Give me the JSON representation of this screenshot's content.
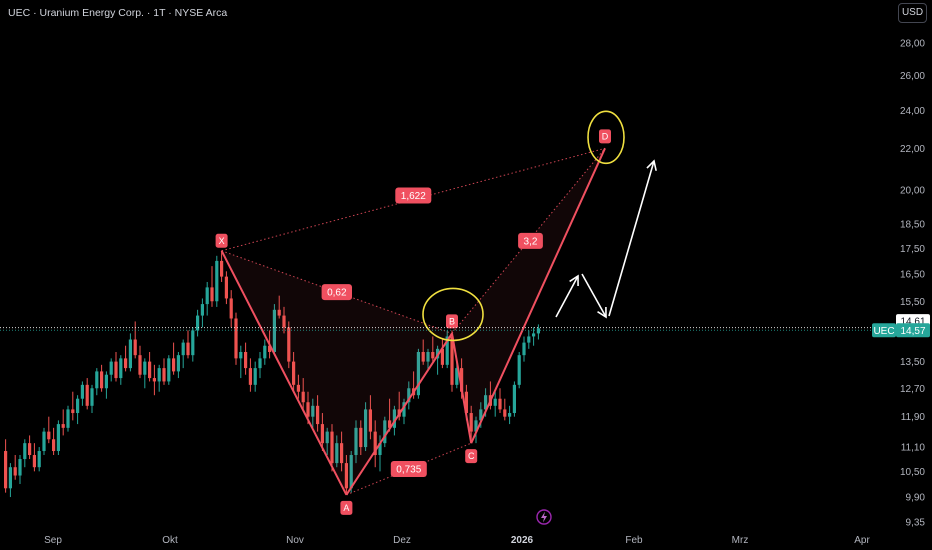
{
  "header": {
    "title": "UEC · Uranium Energy Corp. · 1T · NYSE Arca",
    "currency": "USD"
  },
  "chart_data": {
    "type": "candlestick",
    "symbol": "UEC",
    "price_axis": {
      "ticks": [
        "28,00",
        "26,00",
        "24,00",
        "22,00",
        "20,00",
        "18,50",
        "17,50",
        "16,50",
        "15,50",
        "13,50",
        "12,70",
        "11,90",
        "11,10",
        "10,50",
        "9,90",
        "9,35"
      ],
      "scale": "log"
    },
    "time_axis": {
      "ticks": [
        "Sep",
        "Okt",
        "Nov",
        "Dez",
        "2026",
        "Feb",
        "Mrz",
        "Apr"
      ],
      "bold": [
        "2026"
      ]
    },
    "last_price": "14,57",
    "crosshair_price": "14,61",
    "symbol_label": "UEC",
    "colors": {
      "up": "#26a69a",
      "down": "#ef5350",
      "pattern": "#f05060",
      "highlight": "#f0e040"
    },
    "pattern": {
      "points": [
        {
          "label": "X",
          "price": 17.4
        },
        {
          "label": "A",
          "price": 9.95
        },
        {
          "label": "B",
          "price": 14.4
        },
        {
          "label": "C",
          "price": 11.2
        },
        {
          "label": "D",
          "price": 22.0
        }
      ],
      "ratios": [
        "1,622",
        "0,62",
        "3,2",
        "0,735"
      ]
    },
    "candles": [
      [
        11.0,
        11.3,
        10.0,
        10.1
      ],
      [
        10.1,
        10.7,
        9.9,
        10.6
      ],
      [
        10.6,
        10.9,
        10.3,
        10.4
      ],
      [
        10.4,
        10.9,
        10.2,
        10.8
      ],
      [
        10.8,
        11.3,
        10.6,
        11.2
      ],
      [
        11.2,
        11.4,
        10.8,
        10.9
      ],
      [
        10.9,
        11.2,
        10.5,
        10.6
      ],
      [
        10.6,
        11.1,
        10.5,
        11.0
      ],
      [
        11.0,
        11.6,
        10.9,
        11.5
      ],
      [
        11.5,
        11.9,
        11.2,
        11.3
      ],
      [
        11.3,
        11.6,
        10.9,
        11.0
      ],
      [
        11.0,
        11.8,
        10.9,
        11.7
      ],
      [
        11.7,
        12.1,
        11.4,
        11.6
      ],
      [
        11.6,
        12.2,
        11.5,
        12.1
      ],
      [
        12.1,
        12.6,
        11.8,
        12.0
      ],
      [
        12.0,
        12.5,
        11.7,
        12.4
      ],
      [
        12.4,
        12.9,
        12.2,
        12.8
      ],
      [
        12.8,
        13.0,
        12.1,
        12.2
      ],
      [
        12.2,
        12.8,
        12.0,
        12.7
      ],
      [
        12.7,
        13.3,
        12.5,
        13.2
      ],
      [
        13.2,
        13.4,
        12.6,
        12.7
      ],
      [
        12.7,
        13.2,
        12.4,
        13.1
      ],
      [
        13.1,
        13.6,
        12.9,
        13.5
      ],
      [
        13.5,
        13.8,
        12.9,
        13.0
      ],
      [
        13.0,
        13.7,
        12.8,
        13.6
      ],
      [
        13.6,
        14.0,
        13.2,
        13.3
      ],
      [
        13.3,
        14.4,
        13.2,
        14.2
      ],
      [
        14.2,
        14.8,
        13.6,
        13.7
      ],
      [
        13.7,
        14.0,
        13.0,
        13.1
      ],
      [
        13.1,
        13.6,
        12.7,
        13.5
      ],
      [
        13.5,
        13.8,
        12.9,
        13.0
      ],
      [
        13.0,
        13.4,
        12.5,
        12.9
      ],
      [
        12.9,
        13.4,
        12.6,
        13.3
      ],
      [
        13.3,
        13.6,
        12.8,
        12.9
      ],
      [
        12.9,
        13.7,
        12.8,
        13.6
      ],
      [
        13.6,
        14.1,
        13.1,
        13.2
      ],
      [
        13.2,
        13.8,
        13.0,
        13.7
      ],
      [
        13.7,
        14.2,
        13.3,
        14.1
      ],
      [
        14.1,
        14.5,
        13.6,
        13.7
      ],
      [
        13.7,
        14.6,
        13.5,
        14.5
      ],
      [
        14.5,
        15.2,
        14.3,
        15.0
      ],
      [
        15.0,
        15.6,
        14.6,
        15.4
      ],
      [
        15.4,
        16.2,
        15.0,
        16.0
      ],
      [
        16.0,
        16.8,
        15.3,
        15.5
      ],
      [
        15.5,
        17.2,
        15.3,
        17.0
      ],
      [
        17.0,
        17.4,
        16.2,
        16.4
      ],
      [
        16.4,
        16.6,
        15.4,
        15.6
      ],
      [
        15.6,
        15.9,
        14.6,
        14.9
      ],
      [
        14.9,
        15.1,
        13.4,
        13.6
      ],
      [
        13.6,
        14.0,
        13.0,
        13.8
      ],
      [
        13.8,
        14.1,
        13.1,
        13.3
      ],
      [
        13.3,
        13.6,
        12.6,
        12.8
      ],
      [
        12.8,
        13.5,
        12.6,
        13.3
      ],
      [
        13.3,
        13.8,
        13.0,
        13.6
      ],
      [
        13.6,
        14.2,
        13.4,
        14.0
      ],
      [
        14.0,
        14.5,
        13.6,
        13.8
      ],
      [
        13.8,
        15.4,
        13.7,
        15.2
      ],
      [
        15.2,
        15.7,
        14.9,
        15.0
      ],
      [
        15.0,
        15.3,
        14.4,
        14.6
      ],
      [
        14.6,
        14.8,
        13.3,
        13.5
      ],
      [
        13.5,
        13.8,
        12.6,
        12.8
      ],
      [
        12.8,
        13.1,
        12.4,
        12.6
      ],
      [
        12.6,
        13.0,
        12.1,
        12.3
      ],
      [
        12.3,
        12.6,
        11.7,
        11.9
      ],
      [
        11.9,
        12.4,
        11.6,
        12.2
      ],
      [
        12.2,
        12.5,
        11.5,
        11.7
      ],
      [
        11.7,
        12.0,
        11.0,
        11.2
      ],
      [
        11.2,
        11.6,
        10.9,
        11.5
      ],
      [
        11.5,
        11.7,
        10.5,
        10.7
      ],
      [
        10.7,
        11.4,
        10.6,
        11.2
      ],
      [
        11.2,
        11.5,
        10.5,
        10.7
      ],
      [
        10.7,
        10.9,
        9.95,
        10.1
      ],
      [
        10.1,
        11.0,
        10.0,
        10.9
      ],
      [
        10.9,
        11.8,
        10.7,
        11.6
      ],
      [
        11.6,
        11.8,
        10.9,
        11.1
      ],
      [
        11.1,
        12.3,
        11.0,
        12.1
      ],
      [
        12.1,
        12.5,
        11.3,
        11.5
      ],
      [
        11.5,
        11.8,
        10.6,
        10.9
      ],
      [
        10.9,
        11.4,
        10.5,
        11.2
      ],
      [
        11.2,
        11.9,
        11.1,
        11.8
      ],
      [
        11.8,
        12.4,
        11.5,
        11.6
      ],
      [
        11.6,
        12.2,
        11.4,
        12.1
      ],
      [
        12.1,
        12.6,
        11.8,
        11.9
      ],
      [
        11.9,
        12.4,
        11.7,
        12.3
      ],
      [
        12.3,
        12.9,
        12.1,
        12.7
      ],
      [
        12.7,
        13.2,
        12.4,
        12.5
      ],
      [
        12.5,
        13.9,
        12.4,
        13.8
      ],
      [
        13.8,
        14.2,
        13.4,
        13.5
      ],
      [
        13.5,
        13.9,
        13.2,
        13.8
      ],
      [
        13.8,
        14.3,
        13.5,
        13.6
      ],
      [
        13.6,
        14.0,
        13.1,
        13.9
      ],
      [
        13.9,
        14.2,
        13.3,
        13.4
      ],
      [
        13.4,
        14.5,
        13.3,
        14.3
      ],
      [
        14.3,
        14.5,
        12.6,
        12.8
      ],
      [
        12.8,
        13.5,
        12.7,
        13.3
      ],
      [
        13.3,
        13.6,
        12.4,
        12.6
      ],
      [
        12.6,
        12.8,
        11.8,
        12.0
      ],
      [
        12.0,
        12.2,
        11.3,
        11.5
      ],
      [
        11.5,
        11.9,
        11.2,
        11.8
      ],
      [
        11.8,
        12.3,
        11.6,
        12.1
      ],
      [
        12.1,
        12.7,
        11.9,
        12.5
      ],
      [
        12.5,
        12.9,
        12.1,
        12.2
      ],
      [
        12.2,
        12.6,
        11.9,
        12.4
      ],
      [
        12.4,
        12.7,
        12.0,
        12.1
      ],
      [
        12.1,
        12.4,
        11.8,
        11.9
      ],
      [
        11.9,
        12.2,
        11.7,
        12.0
      ],
      [
        12.0,
        12.9,
        11.9,
        12.8
      ],
      [
        12.8,
        13.8,
        12.7,
        13.7
      ],
      [
        13.7,
        14.3,
        13.5,
        14.1
      ],
      [
        14.1,
        14.5,
        13.9,
        14.3
      ],
      [
        14.3,
        14.6,
        14.0,
        14.4
      ],
      [
        14.4,
        14.7,
        14.2,
        14.57
      ]
    ]
  }
}
